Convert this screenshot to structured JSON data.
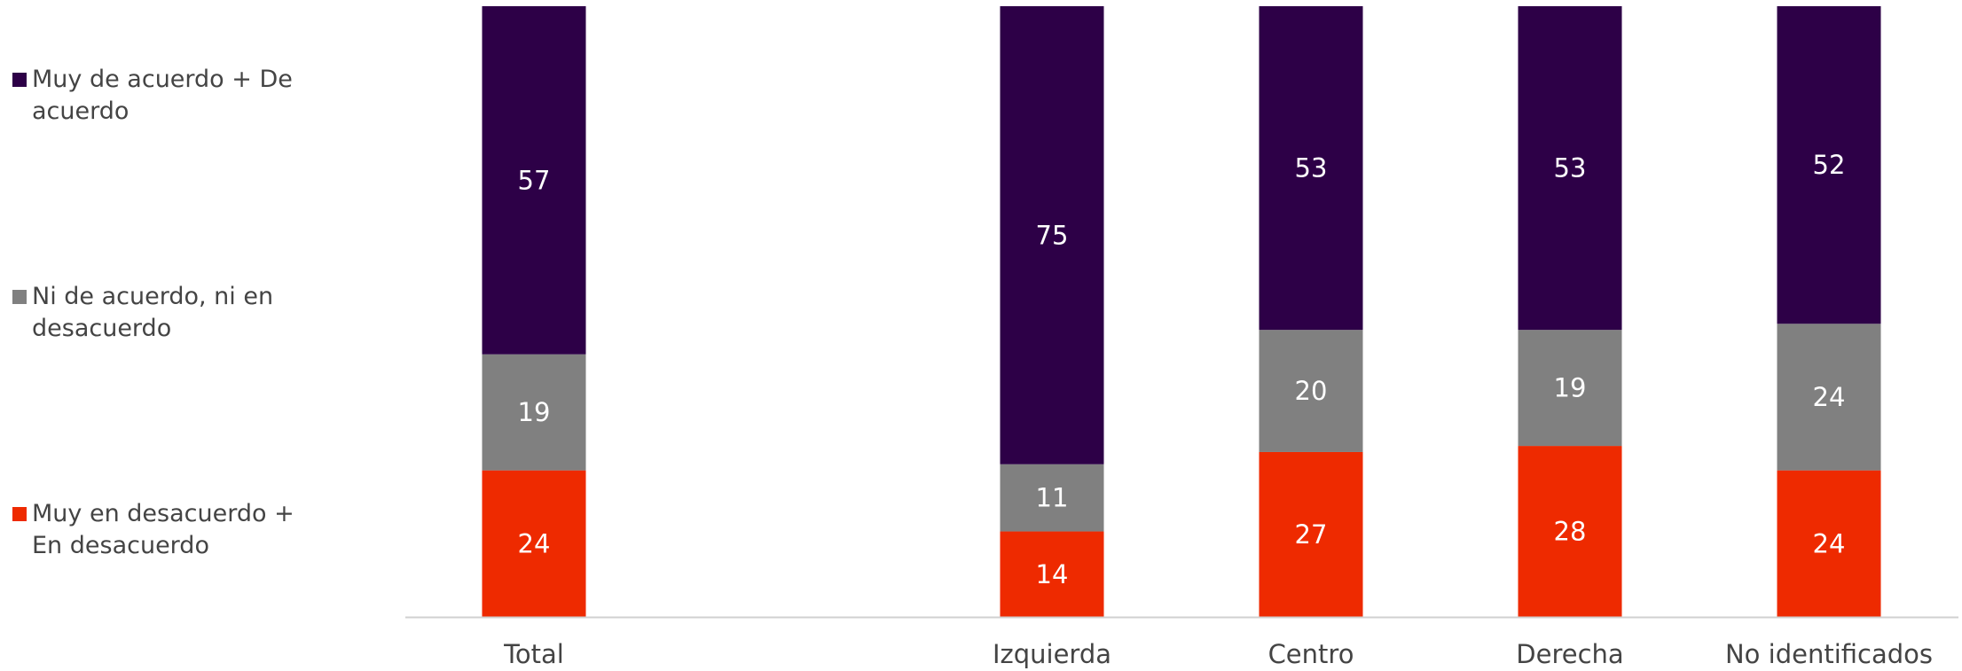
{
  "chart_data": {
    "type": "stacked_bar",
    "categories": [
      "Total",
      null,
      "Izquierda",
      "Centro",
      "Derecha",
      "No identificados"
    ],
    "series": [
      {
        "name": "Muy en desacuerdo + En desacuerdo",
        "color": "#ee2a00",
        "values": [
          24,
          null,
          14,
          27,
          28,
          24
        ]
      },
      {
        "name": "Ni de acuerdo, ni en desacuerdo",
        "color": "#808080",
        "values": [
          19,
          null,
          11,
          20,
          19,
          24
        ]
      },
      {
        "name": "Muy de acuerdo + De acuerdo",
        "color": "#2d0047",
        "values": [
          57,
          null,
          75,
          53,
          53,
          52
        ]
      }
    ],
    "ylim": [
      0,
      100
    ],
    "legend": "left"
  }
}
